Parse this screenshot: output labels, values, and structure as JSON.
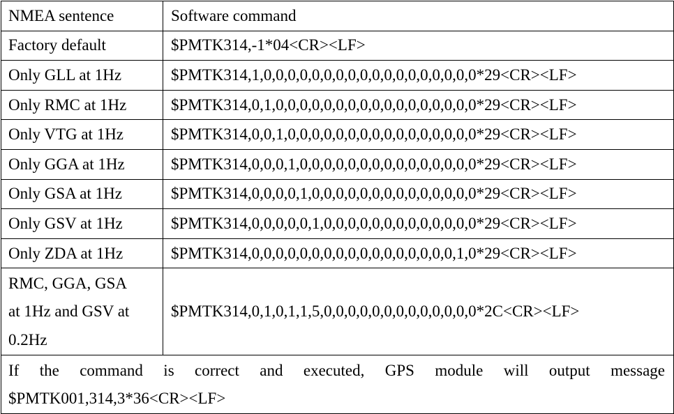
{
  "table": {
    "header": {
      "col1": "NMEA sentence",
      "col2": "Software command"
    },
    "rows": [
      {
        "sentence": "Factory default",
        "command": "$PMTK314,-1*04<CR><LF>"
      },
      {
        "sentence": "Only GLL at 1Hz",
        "command": "$PMTK314,1,0,0,0,0,0,0,0,0,0,0,0,0,0,0,0,0,0,0*29<CR><LF>"
      },
      {
        "sentence": "Only RMC at 1Hz",
        "command": "$PMTK314,0,1,0,0,0,0,0,0,0,0,0,0,0,0,0,0,0,0,0*29<CR><LF>"
      },
      {
        "sentence": "Only VTG at 1Hz",
        "command": "$PMTK314,0,0,1,0,0,0,0,0,0,0,0,0,0,0,0,0,0,0,0*29<CR><LF>"
      },
      {
        "sentence": "Only GGA at 1Hz",
        "command": "$PMTK314,0,0,0,1,0,0,0,0,0,0,0,0,0,0,0,0,0,0,0*29<CR><LF>"
      },
      {
        "sentence": "Only GSA at 1Hz",
        "command": "$PMTK314,0,0,0,0,1,0,0,0,0,0,0,0,0,0,0,0,0,0,0*29<CR><LF>"
      },
      {
        "sentence": "Only GSV at 1Hz",
        "command": "$PMTK314,0,0,0,0,0,1,0,0,0,0,0,0,0,0,0,0,0,0,0*29<CR><LF>"
      },
      {
        "sentence": "Only ZDA at 1Hz",
        "command": "$PMTK314,0,0,0,0,0,0,0,0,0,0,0,0,0,0,0,0,0,1,0*29<CR><LF>"
      }
    ],
    "combined": {
      "sentence_lines": [
        "RMC, GGA, GSA",
        "at 1Hz and GSV at",
        "0.2Hz"
      ],
      "command": "$PMTK314,0,1,0,1,1,5,0,0,0,0,0,0,0,0,0,0,0,0,0*2C<CR><LF>"
    },
    "footer": {
      "line1": "If the command is correct and executed, GPS module will output message",
      "line2": "$PMTK001,314,3*36<CR><LF>"
    }
  }
}
